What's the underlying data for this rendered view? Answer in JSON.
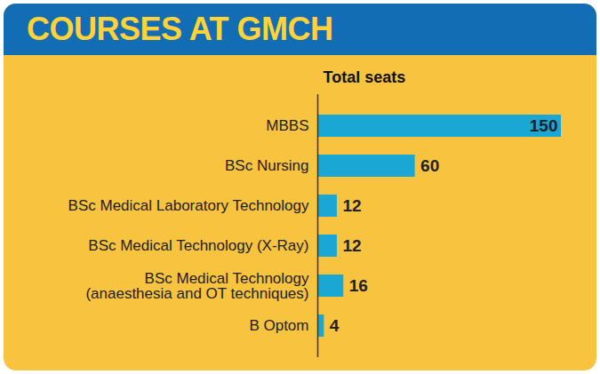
{
  "chart_data": {
    "type": "bar",
    "title": "COURSES AT GMCH",
    "x_label": "Total seats",
    "orientation": "horizontal",
    "categories": [
      "MBBS",
      "BSc Nursing",
      "BSc Medical Laboratory Technology",
      "BSc Medical Technology (X-Ray)",
      "BSc Medical Technology (anaesthesia and OT techniques)",
      "B Optom"
    ],
    "values": [
      150,
      60,
      12,
      12,
      16,
      4
    ],
    "color": "#1aa7d3",
    "xlim": [
      0,
      150
    ],
    "data_labels": true,
    "tick_labels": "y"
  }
}
